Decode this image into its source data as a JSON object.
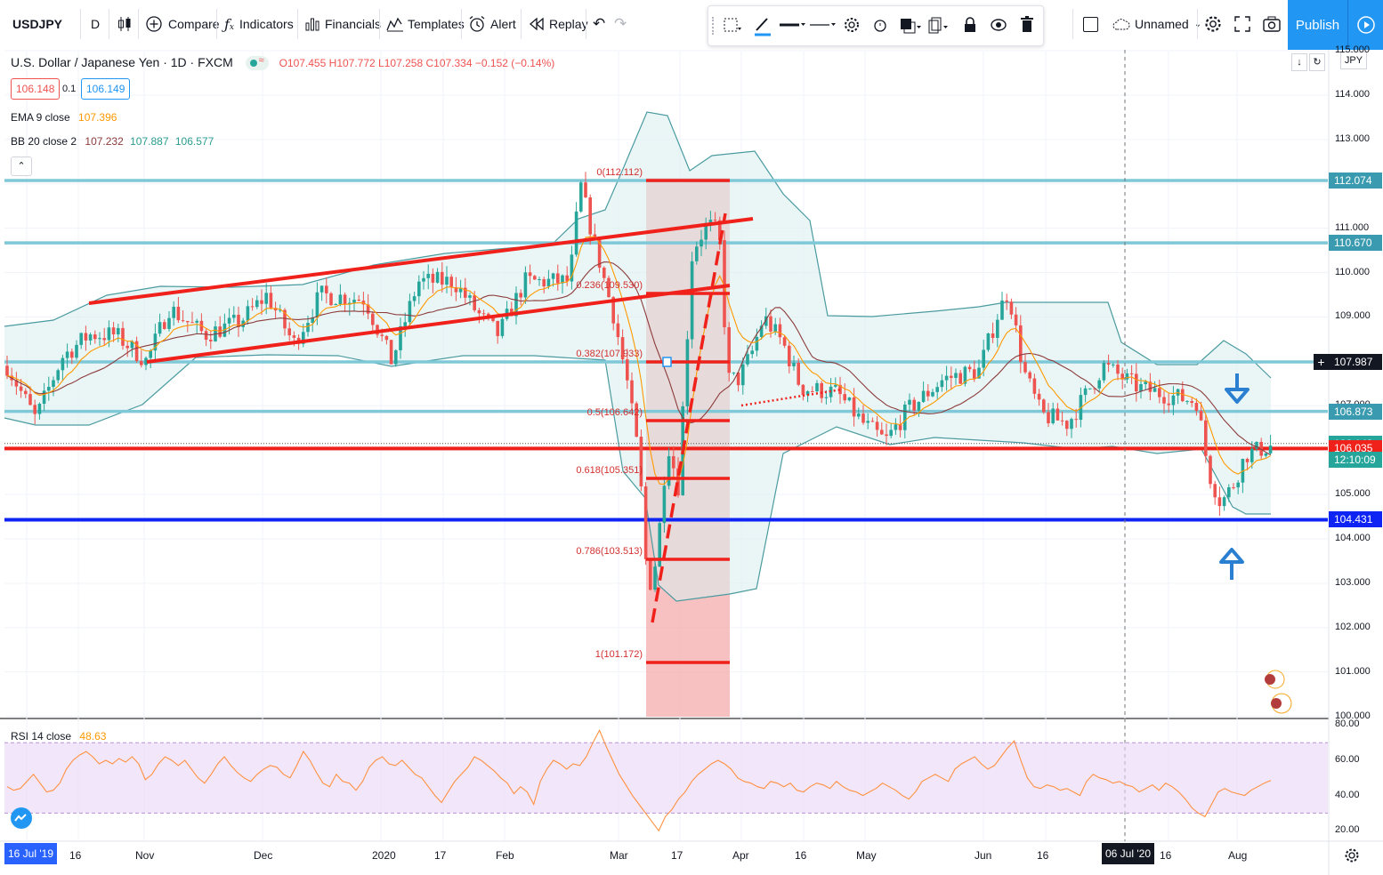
{
  "toolbar": {
    "symbol": "USDJPY",
    "interval": "D",
    "compare": "Compare",
    "indicators": "Indicators",
    "financials": "Financials",
    "templates": "Templates",
    "alert": "Alert",
    "replay": "Replay",
    "layout_name": "Unnamed",
    "publish": "Publish"
  },
  "header": {
    "title": "U.S. Dollar / Japanese Yen · 1D · FXCM",
    "ohlc": {
      "open_label": "O",
      "open": "107.455",
      "high_label": "H",
      "high": "107.772",
      "low_label": "L",
      "low": "107.258",
      "close_label": "C",
      "close": "107.334",
      "change": "−0.152 (−0.14%)"
    },
    "sell_price": "106.148",
    "spread": "0.1",
    "buy_price": "106.149"
  },
  "legend": {
    "ema_label": "EMA 9 close",
    "ema_value": "107.396",
    "bb_label": "BB 20 close 2",
    "bb_basis": "107.232",
    "bb_upper": "107.887",
    "bb_lower": "106.577",
    "rsi_label": "RSI 14 close",
    "rsi_value": "48.63"
  },
  "colors": {
    "up": "#26a69a",
    "down": "#ef5350",
    "ema": "#ff9800",
    "bb_basis": "#8d3b3b",
    "bb_band": "#4a9ba0",
    "hline_light": "#7ec8d8",
    "hline_red": "#f0201a",
    "hline_blue": "#0e24f5",
    "fib_zone": "#f4a7a7",
    "rsi": "#ff9040",
    "rsi_band": "#ead7f7"
  },
  "chart_data": {
    "type": "candlestick",
    "symbol": "USDJPY",
    "timeframe": "1D",
    "ylim": [
      100,
      115
    ],
    "price_ticks": [
      "115.000",
      "114.000",
      "113.000",
      "112.000",
      "111.000",
      "110.000",
      "109.000",
      "108.000",
      "107.000",
      "106.000",
      "105.000",
      "104.000",
      "103.000",
      "102.000",
      "101.000",
      "100.000"
    ],
    "x_ticks": [
      "16 Jul '19",
      "16",
      "Nov",
      "Dec",
      "2020",
      "17",
      "Feb",
      "Mar",
      "17",
      "Apr",
      "16",
      "May",
      "Jun",
      "16",
      "06 Jul '20",
      "16",
      "Aug"
    ],
    "currency": "JPY",
    "horizontal_levels": [
      {
        "value": 112.074,
        "label": "112.074",
        "color": "hline_light"
      },
      {
        "value": 110.67,
        "label": "110.670",
        "color": "hline_light"
      },
      {
        "value": 107.987,
        "label": "107.987",
        "color": "hline_light"
      },
      {
        "value": 106.873,
        "label": "106.873",
        "color": "hline_light"
      },
      {
        "value": 106.148,
        "label": "106.148",
        "color": "current"
      },
      {
        "value": 106.035,
        "label": "106.035",
        "color": "hline_red"
      },
      {
        "value": 104.431,
        "label": "104.431",
        "color": "hline_blue"
      }
    ],
    "countdown": "12:10:09",
    "fibonacci": [
      {
        "ratio": "0",
        "price": 112.112,
        "label": "0(112.112)"
      },
      {
        "ratio": "0.236",
        "price": 109.53,
        "label": "0.236(109.530)"
      },
      {
        "ratio": "0.382",
        "price": 107.933,
        "label": "0.382(107.933)"
      },
      {
        "ratio": "0.5",
        "price": 106.642,
        "label": "0.5(106.642)"
      },
      {
        "ratio": "0.618",
        "price": 105.351,
        "label": "0.618(105.351)"
      },
      {
        "ratio": "0.786",
        "price": 103.513,
        "label": "0.786(103.513)"
      },
      {
        "ratio": "1",
        "price": 101.172,
        "label": "1(101.172)"
      }
    ],
    "rsi": {
      "ylim": [
        15,
        85
      ],
      "ticks": [
        "80.00",
        "60.00",
        "40.00",
        "20.00"
      ],
      "band": [
        30,
        70
      ],
      "values": [
        45,
        43,
        44,
        48,
        52,
        47,
        42,
        43,
        47,
        55,
        60,
        63,
        65,
        62,
        58,
        60,
        58,
        61,
        59,
        62,
        58,
        49,
        52,
        58,
        62,
        60,
        57,
        60,
        55,
        50,
        47,
        52,
        58,
        62,
        57,
        53,
        50,
        48,
        52,
        55,
        57,
        56,
        52,
        50,
        57,
        65,
        60,
        53,
        47,
        45,
        52,
        48,
        47,
        43,
        48,
        56,
        60,
        62,
        58,
        57,
        60,
        56,
        52,
        50,
        45,
        40,
        36,
        42,
        48,
        52,
        56,
        62,
        60,
        57,
        54,
        50,
        47,
        41,
        45,
        42,
        35,
        48,
        55,
        60,
        58,
        55,
        58,
        57,
        62,
        70,
        77,
        68,
        60,
        52,
        46,
        40,
        35,
        30,
        25,
        20,
        28,
        32,
        38,
        42,
        48,
        52,
        55,
        58,
        60,
        58,
        55,
        50,
        48,
        47,
        45,
        44,
        48,
        47,
        45,
        47,
        43,
        42,
        45,
        47,
        46,
        44,
        48,
        45,
        43,
        42,
        40,
        42,
        44,
        47,
        45,
        43,
        40,
        38,
        42,
        48,
        50,
        52,
        50,
        48,
        55,
        58,
        60,
        62,
        58,
        55,
        57,
        62,
        67,
        71,
        60,
        50,
        45,
        44,
        46,
        45,
        43,
        44,
        42,
        40,
        48,
        52,
        50,
        49,
        47,
        48,
        46,
        45,
        42,
        44,
        46,
        43,
        47,
        45,
        42,
        38,
        33,
        30,
        28,
        35,
        42,
        44,
        42,
        41,
        40,
        43,
        45,
        47,
        48.6
      ]
    }
  }
}
